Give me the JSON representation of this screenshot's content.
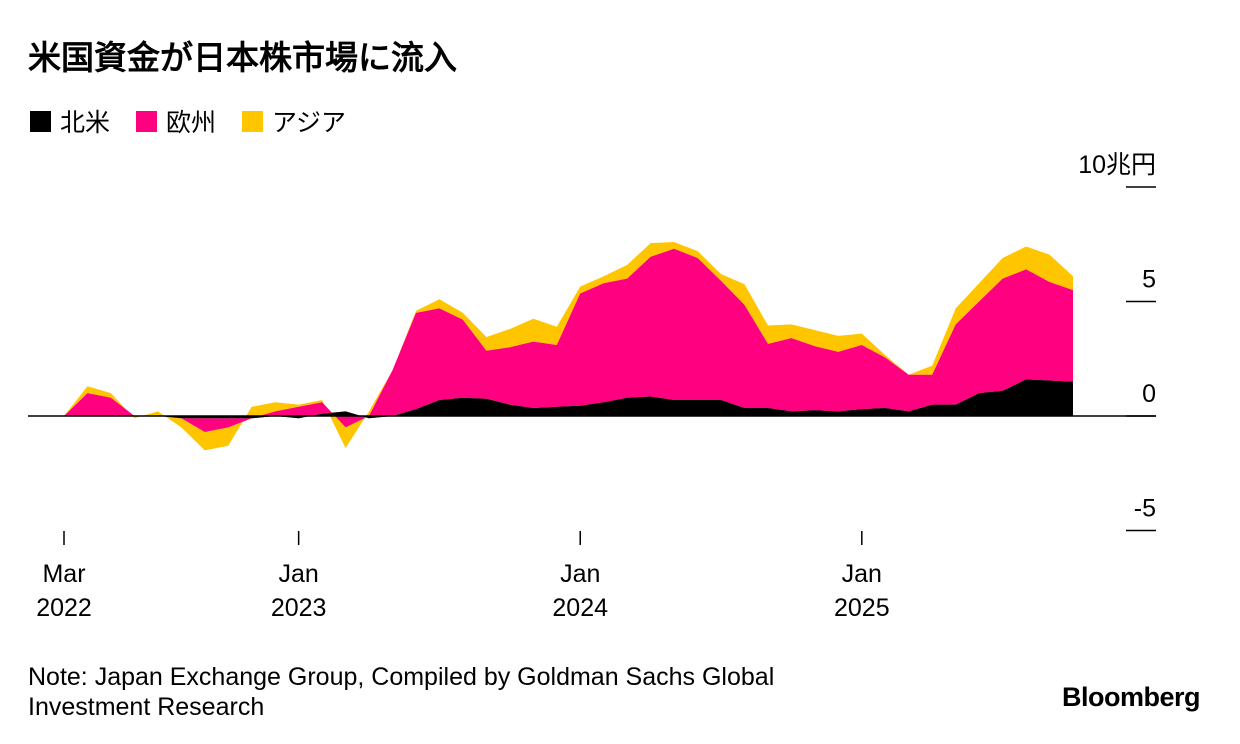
{
  "chart_data": {
    "type": "area",
    "stacked": true,
    "title": "米国資金が日本株市場に流入",
    "unit": "10兆円",
    "y_ticks": [
      "10兆円",
      "5",
      "0",
      "-5"
    ],
    "y_tick_values": [
      10,
      5,
      0,
      -5
    ],
    "ylim": [
      -5,
      10
    ],
    "x_tick_labels": [
      {
        "line1": "Mar",
        "line2": "2022",
        "date": "2022-03-01"
      },
      {
        "line1": "Jan",
        "line2": "2023",
        "date": "2023-01-01"
      },
      {
        "line1": "Jan",
        "line2": "2024",
        "date": "2024-01-01"
      },
      {
        "line1": "Jan",
        "line2": "2025",
        "date": "2025-01-01"
      }
    ],
    "x": [
      "2022-03",
      "2022-04",
      "2022-05",
      "2022-06",
      "2022-07",
      "2022-08",
      "2022-09",
      "2022-10",
      "2022-11",
      "2022-12",
      "2023-01",
      "2023-02",
      "2023-03",
      "2023-04",
      "2023-05",
      "2023-06",
      "2023-07",
      "2023-08",
      "2023-09",
      "2023-10",
      "2023-11",
      "2023-12",
      "2024-01",
      "2024-02",
      "2024-03",
      "2024-04",
      "2024-05",
      "2024-06",
      "2024-07",
      "2024-08",
      "2024-09",
      "2024-10",
      "2024-11",
      "2024-12",
      "2025-01",
      "2025-02",
      "2025-03",
      "2025-04",
      "2025-05",
      "2025-06",
      "2025-07",
      "2025-08",
      "2025-09",
      "2025-10"
    ],
    "series": [
      {
        "name": "北米",
        "color": "#000000",
        "values": [
          0,
          0,
          0,
          0,
          0,
          -0.1,
          -0.1,
          -0.1,
          -0.1,
          0,
          -0.1,
          0.1,
          0.2,
          -0.1,
          0,
          0.3,
          0.7,
          0.8,
          0.75,
          0.5,
          0.35,
          0.4,
          0.45,
          0.6,
          0.8,
          0.85,
          0.7,
          0.7,
          0.7,
          0.35,
          0.35,
          0.2,
          0.25,
          0.2,
          0.3,
          0.35,
          0.2,
          0.5,
          0.5,
          1.0,
          1.1,
          1.6,
          1.55,
          1.5
        ]
      },
      {
        "name": "欧州",
        "color": "#ff0080",
        "values": [
          0,
          1.0,
          0.8,
          0,
          0,
          0,
          -0.6,
          -0.4,
          0,
          0.2,
          0.5,
          0.5,
          -0.7,
          0.1,
          2.0,
          4.2,
          4.0,
          3.4,
          2.1,
          2.5,
          2.9,
          2.7,
          4.9,
          5.2,
          5.2,
          6.1,
          6.6,
          6.2,
          5.2,
          4.5,
          2.8,
          3.2,
          2.8,
          2.6,
          2.8,
          2.2,
          1.6,
          1.3,
          3.5,
          4.0,
          4.9,
          4.8,
          4.3,
          4.0
        ]
      },
      {
        "name": "アジア",
        "color": "#ffc600",
        "values": [
          0,
          0.3,
          0.2,
          -0.1,
          0.2,
          -0.4,
          -0.8,
          -0.8,
          0.5,
          0.4,
          0.1,
          0.1,
          -0.9,
          0.2,
          0,
          0.1,
          0.4,
          0.3,
          0.6,
          0.8,
          1.0,
          0.8,
          0.3,
          0.3,
          0.6,
          0.6,
          0.3,
          0.3,
          0.3,
          0.9,
          0.8,
          0.6,
          0.7,
          0.7,
          0.5,
          0.1,
          0,
          0.4,
          0.7,
          0.8,
          0.9,
          1.0,
          1.2,
          0.6
        ]
      }
    ],
    "legend_position": "top-left",
    "grid": false
  },
  "note": "Note: Japan Exchange Group, Compiled by Goldman Sachs Global Investment Research",
  "brand": "Bloomberg"
}
